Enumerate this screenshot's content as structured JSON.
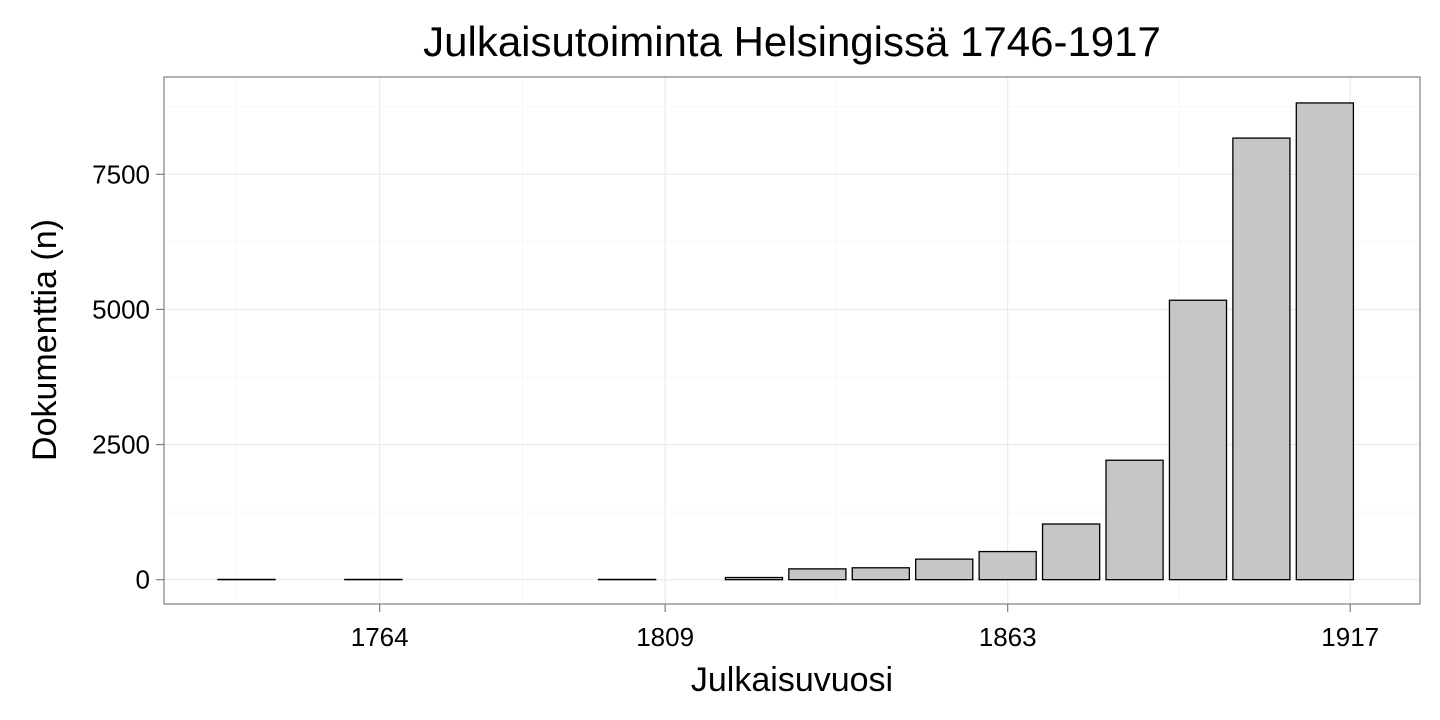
{
  "chart_data": {
    "type": "bar",
    "title": "Julkaisutoiminta Helsingissä 1746-1917",
    "xlabel": "Julkaisuvuosi",
    "ylabel": "Dokumenttia (n)",
    "x_ticks": [
      1764,
      1809,
      1863,
      1917
    ],
    "y_ticks": [
      0,
      2500,
      5000,
      7500
    ],
    "xlim": [
      1730,
      1928
    ],
    "ylim": [
      -450,
      9300
    ],
    "bar_width_years": 9,
    "grid": true,
    "x": [
      1743,
      1763,
      1803,
      1823,
      1833,
      1843,
      1853,
      1863,
      1873,
      1883,
      1893,
      1903,
      1913
    ],
    "values": [
      5,
      5,
      5,
      40,
      200,
      220,
      380,
      520,
      1030,
      2210,
      5170,
      8170,
      8820
    ]
  }
}
